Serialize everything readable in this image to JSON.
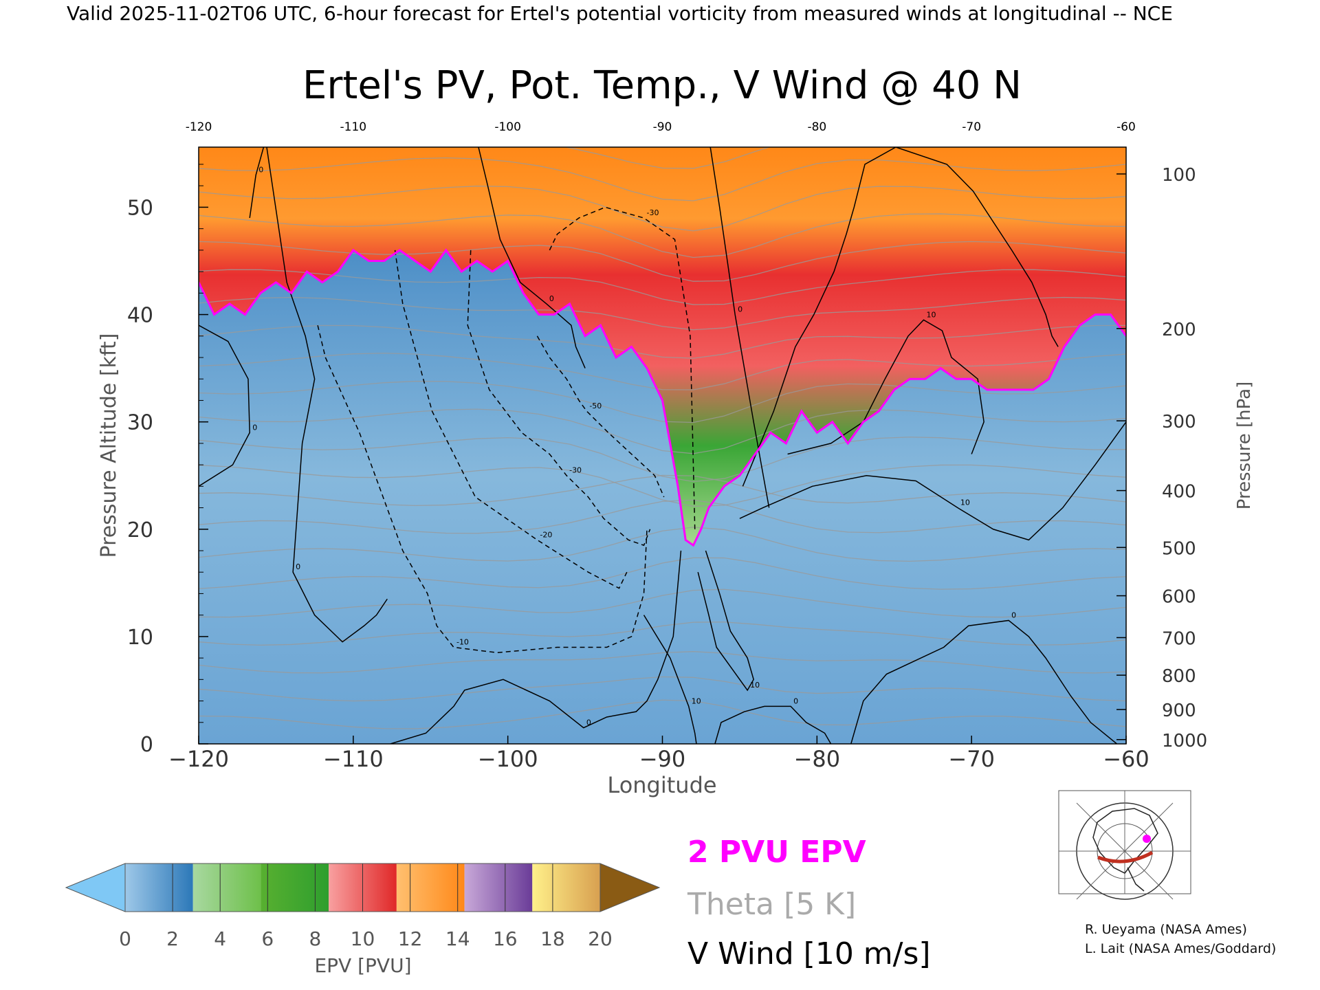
{
  "header": "Valid 2025-11-02T06 UTC, 6-hour forecast for Ertel's potential vorticity from measured winds at longitudinal -- NCE",
  "chart_data": {
    "type": "heatmap",
    "title": "Ertel's PV, Pot. Temp., V Wind @ 40 N",
    "xlabel": "Longitude",
    "ylabel": "Pressure Altitude [kft]",
    "y2label": "Pressure [hPa]",
    "xlim": [
      -120,
      -60
    ],
    "ylim": [
      0,
      55.6
    ],
    "x_ticks": [
      -120,
      -110,
      -100,
      -90,
      -80,
      -70,
      -60
    ],
    "x_tick_labels": [
      "−120",
      "−110",
      "−100",
      "−90",
      "−80",
      "−70",
      "−60"
    ],
    "top_ticks": [
      -120,
      -110,
      -100,
      -90,
      -80,
      -70,
      -60
    ],
    "top_tick_labels": [
      "-120",
      "-110",
      "-100",
      "-90",
      "-80",
      "-70",
      "-60"
    ],
    "y_ticks": [
      0,
      10,
      20,
      30,
      40,
      50
    ],
    "y_tick_labels": [
      "0",
      "10",
      "20",
      "30",
      "40",
      "50"
    ],
    "pressure_ticks": [
      {
        "hpa": 100,
        "label": "100",
        "kft": 53.1
      },
      {
        "hpa": 200,
        "label": "200",
        "kft": 38.7
      },
      {
        "hpa": 300,
        "label": "300",
        "kft": 30.1
      },
      {
        "hpa": 400,
        "label": "400",
        "kft": 23.6
      },
      {
        "hpa": 500,
        "label": "500",
        "kft": 18.3
      },
      {
        "hpa": 600,
        "label": "600",
        "kft": 13.8
      },
      {
        "hpa": 700,
        "label": "700",
        "kft": 9.9
      },
      {
        "hpa": 800,
        "label": "800",
        "kft": 6.4
      },
      {
        "hpa": 900,
        "label": "900",
        "kft": 3.2
      },
      {
        "hpa": 1000,
        "label": "1000",
        "kft": 0.4
      }
    ],
    "tropopause_2pvu": {
      "x": [
        -120,
        -119,
        -118,
        -117,
        -116,
        -115,
        -114,
        -113,
        -112,
        -111,
        -110,
        -109,
        -108,
        -107,
        -106,
        -105,
        -104,
        -103,
        -102,
        -101,
        -100,
        -99,
        -98,
        -97,
        -96,
        -95,
        -94,
        -93,
        -92,
        -91,
        -90,
        -89,
        -88.5,
        -88,
        -87.5,
        -87,
        -86,
        -85,
        -84,
        -83,
        -82,
        -81,
        -80,
        -79,
        -78,
        -77,
        -76,
        -75,
        -74,
        -73,
        -72,
        -71,
        -70,
        -69,
        -68,
        -67,
        -66,
        -65,
        -64,
        -63,
        -62,
        -61,
        -60
      ],
      "kft": [
        43,
        40,
        41,
        40,
        42,
        43,
        42,
        44,
        43,
        44,
        46,
        45,
        45,
        46,
        45,
        44,
        46,
        44,
        45,
        44,
        45,
        42,
        40,
        40,
        41,
        38,
        39,
        36,
        37,
        35,
        32,
        24,
        19,
        18.5,
        20,
        22,
        24,
        25,
        27,
        29,
        28,
        31,
        29,
        30,
        28,
        30,
        31,
        33,
        34,
        34,
        35,
        34,
        34,
        33,
        33,
        33,
        33,
        34,
        37,
        39,
        40,
        40,
        38
      ]
    },
    "v_wind_contours": [
      {
        "label": "-10",
        "x": [
          -112.3,
          -111.8,
          -109.6,
          -106.8,
          -105.2,
          -104.6,
          -103.5,
          -100.7,
          -96.8,
          -93.6,
          -92.0,
          -91.2,
          -91.0
        ],
        "kft": [
          39,
          36,
          29,
          18,
          14,
          11,
          9,
          8.5,
          9,
          9,
          10,
          14,
          20
        ]
      },
      {
        "label": "-20",
        "x": [
          -107.3,
          -106.8,
          -104.9,
          -102.1,
          -98.1,
          -94.8,
          -92.8,
          -92.3
        ],
        "kft": [
          46,
          41,
          31,
          23,
          19,
          16,
          14.5,
          16
        ]
      },
      {
        "label": "-30",
        "x": [
          -102.4,
          -102.6,
          -101.2,
          -99.1,
          -97.3,
          -96.2,
          -94.8,
          -93.8,
          -92.2,
          -91.2,
          -90.8
        ],
        "kft": [
          46,
          39,
          33,
          29,
          27,
          25,
          23,
          21,
          19,
          18.5,
          20
        ]
      },
      {
        "label": "-50",
        "x": [
          -98.1,
          -97.3,
          -96.2,
          -95.4,
          -94.9,
          -93.5,
          -92.0,
          -90.5,
          -89.9
        ],
        "kft": [
          38,
          36,
          34,
          32,
          31,
          29,
          27,
          25,
          23
        ]
      },
      {
        "label": "-30",
        "x": [
          -97.3,
          -96.8,
          -95.4,
          -93.7,
          -91.2,
          -89.2,
          -88.2,
          -87.9
        ],
        "kft": [
          46,
          47.5,
          49,
          50,
          49,
          47,
          38,
          20
        ]
      },
      {
        "label": "0",
        "x": [
          -120,
          -118.1,
          -116.8,
          -116.7,
          -117.8,
          -120
        ],
        "kft": [
          39,
          37.5,
          34,
          29,
          26,
          24
        ]
      },
      {
        "label": "0",
        "x": [
          -115.6,
          -114.3,
          -113.1,
          -112.5,
          -113.3,
          -113.9,
          -112.5,
          -110.7,
          -109.3,
          -108.5,
          -107.8
        ],
        "kft": [
          55.6,
          43,
          38,
          34,
          28,
          16,
          12,
          9.5,
          11,
          12,
          13.5
        ]
      },
      {
        "label": "0",
        "x": [
          -115.8,
          -116.3,
          -116.7
        ],
        "kft": [
          55.6,
          53,
          49
        ]
      },
      {
        "label": "0",
        "x": [
          -101.9,
          -101.3,
          -100.5,
          -99.2,
          -97.5,
          -95.9,
          -95.6,
          -95.3,
          -95.0
        ],
        "kft": [
          55.6,
          52,
          47,
          43,
          41,
          39,
          37,
          36,
          35
        ]
      },
      {
        "label": "10",
        "x": [
          -84.8,
          -82.8,
          -81.4,
          -80.2,
          -78.9,
          -78.1,
          -77.6,
          -76.9,
          -74.9,
          -71.6,
          -69.9,
          -67.4,
          -66.1,
          -65.2,
          -64.8,
          -64.4
        ],
        "kft": [
          24,
          31,
          37,
          40,
          44,
          47.5,
          50,
          54,
          55.6,
          54,
          51.5,
          46,
          43,
          40,
          38,
          37
        ]
      },
      {
        "label": "0",
        "x": [
          -86.9,
          -86.3,
          -85.3,
          -84.1,
          -83.1
        ],
        "kft": [
          55.6,
          50,
          40,
          30,
          22
        ]
      },
      {
        "label": "10",
        "x": [
          -81.9,
          -79.1,
          -77.0,
          -75.6,
          -74.1,
          -73.1,
          -71.9,
          -71.3,
          -69.6,
          -69.2,
          -70.0
        ],
        "kft": [
          27,
          28,
          30,
          34,
          38,
          39.5,
          38.5,
          36,
          34,
          30,
          27
        ]
      },
      {
        "label": "10",
        "x": [
          -85.0,
          -83.5,
          -81.9,
          -80.3,
          -76.8,
          -73.6,
          -70.9,
          -68.6,
          -66.3,
          -64.1,
          -62.0,
          -60
        ],
        "kft": [
          21,
          22,
          23,
          24,
          25,
          24.5,
          22,
          20,
          19,
          22,
          26,
          30
        ]
      },
      {
        "label": "10",
        "x": [
          -87.2,
          -86.3,
          -85.6,
          -84.5,
          -84.1,
          -84.5,
          -85.5,
          -86.5,
          -87.0,
          -87.7
        ],
        "kft": [
          18,
          14,
          10.5,
          8,
          6,
          5,
          7,
          9,
          12,
          16
        ]
      },
      {
        "label": "0",
        "x": [
          -88.8,
          -89.3,
          -90.3,
          -91.0,
          -91.7,
          -93.6,
          -95.1,
          -97.3,
          -100.3,
          -102.8,
          -103.5,
          -105.3,
          -107.6
        ],
        "kft": [
          18,
          10,
          6,
          4,
          3,
          2.5,
          1.5,
          4,
          6,
          5,
          3.5,
          1,
          0
        ]
      },
      {
        "label": "0",
        "x": [
          -77.8,
          -77.0,
          -75.5,
          -71.8,
          -70.2,
          -67.6,
          -66.3,
          -65.2,
          -63.6,
          -62.3,
          -60.6
        ],
        "kft": [
          0,
          4,
          6.5,
          9,
          11,
          11.5,
          10,
          8,
          4.5,
          2,
          0
        ]
      },
      {
        "label": "0",
        "x": [
          -86.6,
          -86.2,
          -84.7,
          -83.4,
          -81.7,
          -80.7,
          -79.5,
          -79.1
        ],
        "kft": [
          0,
          2,
          3,
          3.5,
          3.5,
          2,
          1,
          0
        ]
      },
      {
        "label": "10",
        "x": [
          -87.8,
          -87.9,
          -88.3,
          -89.5,
          -91.2
        ],
        "kft": [
          0,
          1,
          3.5,
          8,
          12
        ]
      }
    ],
    "colorbar": {
      "label": "EPV [PVU]",
      "min": 0,
      "max": 20,
      "tick_values": [
        0,
        2,
        4,
        6,
        8,
        10,
        12,
        14,
        16,
        18,
        20
      ],
      "tick_labels": [
        "0",
        "2",
        "4",
        "6",
        "8",
        "10",
        "12",
        "14",
        "16",
        "18",
        "20"
      ],
      "under_color": "#7fc8f5",
      "over_color": "#8a5b14",
      "bands": [
        [
          "#9ec8e8",
          "#2c78b8"
        ],
        [
          "#a8d8a0",
          "#6ec04a"
        ],
        [
          "#58b030",
          "#2e9e2e"
        ],
        [
          "#f8a0a0",
          "#e02828"
        ],
        [
          "#ffc070",
          "#ff8818"
        ],
        [
          "#c8a8d8",
          "#6a3c98"
        ],
        [
          "#fff08a",
          "#d8a050"
        ]
      ]
    },
    "legend": [
      {
        "label": "2 PVU EPV",
        "color": "#ff00ff"
      },
      {
        "label": "Theta [5 K]",
        "color": "#aaaaaa"
      },
      {
        "label": "V Wind [10 m/s]",
        "color": "#000000"
      }
    ]
  },
  "credits": [
    "R. Ueyama (NASA Ames)",
    "L. Lait (NASA Ames/Goddard)"
  ]
}
